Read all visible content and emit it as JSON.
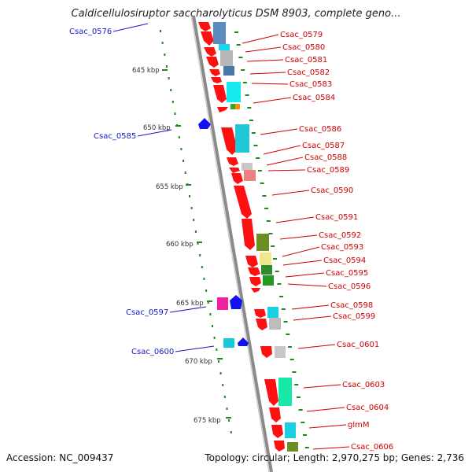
{
  "title": "Caldicellulosiruptor saccharolyticus DSM 8903, complete geno...",
  "footer": {
    "accession": "Accession: NC_009437",
    "info": "Topology: circular; Length: 2,970,275 bp; Genes: 2,736"
  },
  "scale_labels": [
    "645 kbp",
    "650 kbp",
    "655 kbp",
    "660 kbp",
    "665 kbp",
    "670 kbp",
    "675 kbp"
  ],
  "genes_left": [
    "Csac_0576",
    "Csac_0585",
    "Csac_0597",
    "Csac_0600"
  ],
  "genes_right": [
    "Csac_0579",
    "Csac_0580",
    "Csac_0581",
    "Csac_0582",
    "Csac_0583",
    "Csac_0584",
    "Csac_0586",
    "Csac_0587",
    "Csac_0588",
    "Csac_0589",
    "Csac_0590",
    "Csac_0591",
    "Csac_0592",
    "Csac_0593",
    "Csac_0594",
    "Csac_0595",
    "Csac_0596",
    "Csac_0598",
    "Csac_0599",
    "Csac_0601",
    "Csac_0603",
    "Csac_0604",
    "glmM",
    "Csac_0606"
  ],
  "colors": {
    "gene_forward": "#ff0000",
    "gene_reverse": "#0000ff",
    "backbone": "#888888",
    "tick": "#1a8a1a",
    "label_right": "#d00000",
    "label_left": "#1818c8"
  }
}
